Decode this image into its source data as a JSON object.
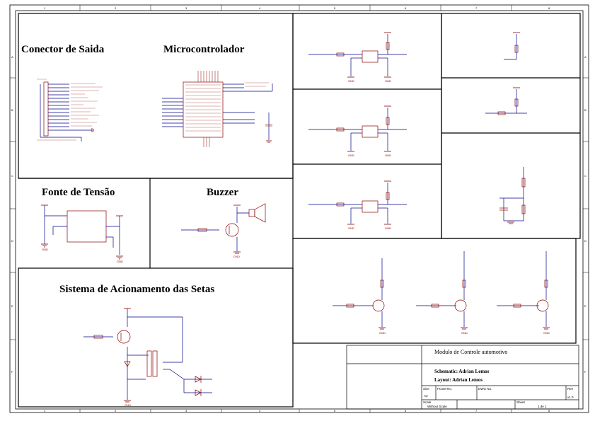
{
  "sections": {
    "connector": "Conector de Saida",
    "mcu": "Microcontrolador",
    "power": "Fonte de Tensão",
    "buzzer": "Buzzer",
    "arrows": "Sistema de Acionamento das Setas"
  },
  "title_block": {
    "module": "Modulo de Controle automotivo",
    "schematic": "Schematic: Adrian Lemos",
    "layout": "Layout: Adrian Lemos",
    "size_label": "Size",
    "size": "A3",
    "fcsm_label": "FCSM No.",
    "dwg_label": "DWG No.",
    "rev_label": "Rev",
    "rev": "v1.0",
    "scale_label": "Scale",
    "scale": "Without Scale",
    "sheet_label": "Sheet",
    "sheet": "1 de 1"
  },
  "border_numbers": [
    "1",
    "2",
    "3",
    "4",
    "5",
    "6",
    "7",
    "8"
  ],
  "border_letters": [
    "A",
    "B",
    "C",
    "D",
    "E",
    "F"
  ],
  "nets": {
    "gnd": "GND",
    "vcc": "+5V",
    "vcc12": "+12V"
  },
  "colors": {
    "wire": "#00008b",
    "part": "#8b0000",
    "border": "#000000"
  }
}
